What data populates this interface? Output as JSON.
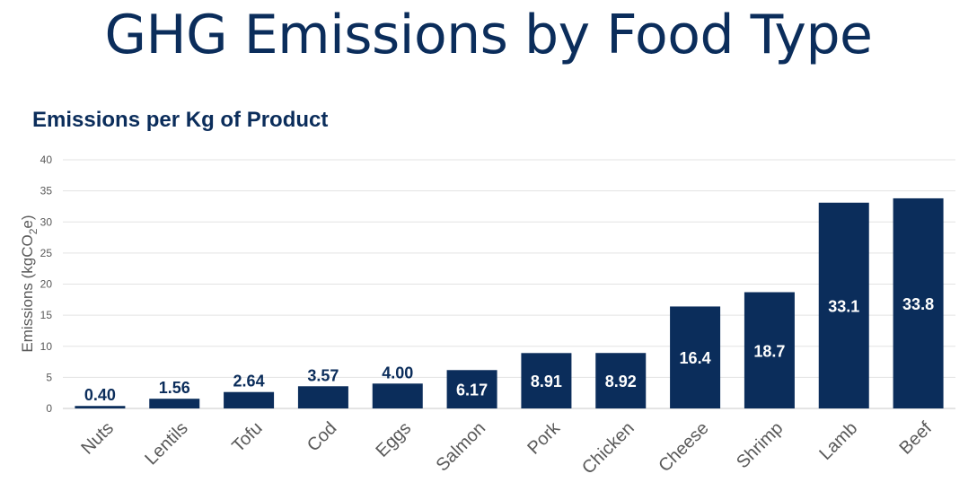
{
  "header": {
    "title": "GHG Emissions by Food Type"
  },
  "chart_data": {
    "type": "bar",
    "title": "Emissions per Kg of Product",
    "xlabel": "",
    "ylabel": "Emissions (kgCO2e)",
    "ylabel_parts": {
      "prefix": "Emissions (kgCO",
      "sub": "2",
      "suffix": "e)"
    },
    "ylim": [
      0,
      40
    ],
    "yticks": [
      0,
      5,
      10,
      15,
      20,
      25,
      30,
      35,
      40
    ],
    "grid": true,
    "categories": [
      "Nuts",
      "Lentils",
      "Tofu",
      "Cod",
      "Eggs",
      "Salmon",
      "Pork",
      "Chicken",
      "Cheese",
      "Shrimp",
      "Lamb",
      "Beef"
    ],
    "values": [
      0.4,
      1.56,
      2.64,
      3.57,
      4.0,
      6.17,
      8.91,
      8.92,
      16.4,
      18.7,
      33.1,
      33.8
    ],
    "labels": [
      "0.40",
      "1.56",
      "2.64",
      "3.57",
      "4.00",
      "6.17",
      "8.91",
      "8.92",
      "16.4",
      "18.7",
      "33.1",
      "33.8"
    ],
    "bar_color": "#0b2d5b",
    "label_color_inside": "#ffffff",
    "label_color_outside": "#0b2d5b"
  }
}
